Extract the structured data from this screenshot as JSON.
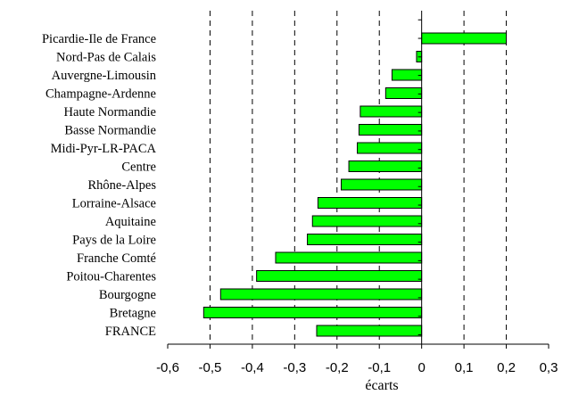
{
  "chart_data": {
    "type": "bar",
    "orientation": "horizontal",
    "categories": [
      "Picardie-Ile de France",
      "Nord-Pas de Calais",
      "Auvergne-Limousin",
      "Champagne-Ardenne",
      "Haute Normandie",
      "Basse Normandie",
      "Midi-Pyr-LR-PACA",
      "Centre",
      "Rhône-Alpes",
      "Lorraine-Alsace",
      "Aquitaine",
      "Pays de la Loire",
      "Franche Comté",
      "Poitou-Charentes",
      "Bourgogne",
      "Bretagne",
      "FRANCE"
    ],
    "values": [
      0.2,
      -0.012,
      -0.07,
      -0.085,
      -0.145,
      -0.148,
      -0.152,
      -0.172,
      -0.19,
      -0.245,
      -0.258,
      -0.27,
      -0.345,
      -0.39,
      -0.475,
      -0.515,
      -0.248
    ],
    "title": "",
    "xlabel": "écarts",
    "ylabel": "",
    "xlim": [
      -0.6,
      0.3
    ],
    "xticks": [
      -0.6,
      -0.5,
      -0.4,
      -0.3,
      -0.2,
      -0.1,
      0,
      0.1,
      0.2,
      0.3
    ],
    "xtick_labels": [
      "-0,6",
      "-0,5",
      "-0,4",
      "-0,3",
      "-0,2",
      "-0,1",
      "0",
      "0,1",
      "0,2",
      "0,3"
    ],
    "grid": "vertical dashed",
    "legend": "none",
    "bar_color": "#00ff00"
  }
}
